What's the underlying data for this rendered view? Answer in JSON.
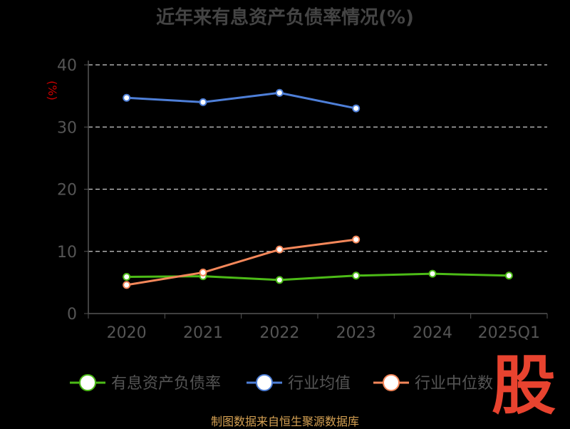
{
  "title": "近年来有息资产负债率情况(%)",
  "footer": "制图数据来自恒生聚源数据库",
  "logo_text": "股",
  "chart_data": {
    "type": "line",
    "ylabel": "(%)",
    "ylim": [
      0,
      40
    ],
    "yticks": [
      0,
      10,
      20,
      30,
      40
    ],
    "grid": true,
    "legend_position": "bottom",
    "categories": [
      "2020",
      "2021",
      "2022",
      "2023",
      "2024",
      "2025Q1"
    ],
    "series": [
      {
        "name": "有息资产负债率",
        "color": "#4cbb17",
        "values": [
          5.9,
          6.0,
          5.4,
          6.1,
          6.4,
          6.1
        ]
      },
      {
        "name": "行业均值",
        "color": "#4e7fd8",
        "values": [
          34.7,
          34.0,
          35.5,
          33.0,
          null,
          null
        ]
      },
      {
        "name": "行业中位数",
        "color": "#f4875a",
        "values": [
          4.6,
          6.6,
          10.3,
          11.9,
          null,
          null
        ]
      }
    ]
  },
  "colors": {
    "axis_text": "#555555",
    "ylabel": "#cc0000",
    "grid": "#cccccc"
  }
}
